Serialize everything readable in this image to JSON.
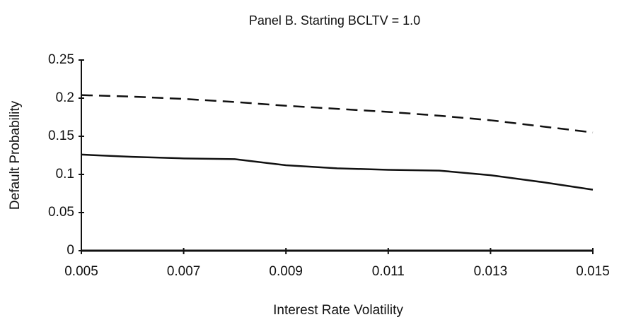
{
  "chart_data": {
    "type": "line",
    "title": "Panel B.  Starting BCLTV = 1.0",
    "x_label": "Interest Rate Volatility",
    "y_label": "Default Probability",
    "x": [
      0.005,
      0.006,
      0.007,
      0.008,
      0.009,
      0.01,
      0.011,
      0.012,
      0.013,
      0.014,
      0.015
    ],
    "series": [
      {
        "color": "#111111",
        "dash": true,
        "values": [
          0.204,
          0.202,
          0.199,
          0.195,
          0.19,
          0.186,
          0.182,
          0.177,
          0.171,
          0.163,
          0.155
        ]
      },
      {
        "color": "#111111",
        "dash": false,
        "values": [
          0.126,
          0.123,
          0.121,
          0.12,
          0.112,
          0.108,
          0.106,
          0.105,
          0.099,
          0.09,
          0.08
        ]
      }
    ],
    "xlim": [
      0.005,
      0.015
    ],
    "xticks": [
      0.005,
      0.007,
      0.009,
      0.011,
      0.013,
      0.015
    ],
    "ylim": [
      0,
      0.25
    ],
    "yticks": [
      0,
      0.05,
      0.1,
      0.15,
      0.2,
      0.25
    ],
    "grid": false
  }
}
